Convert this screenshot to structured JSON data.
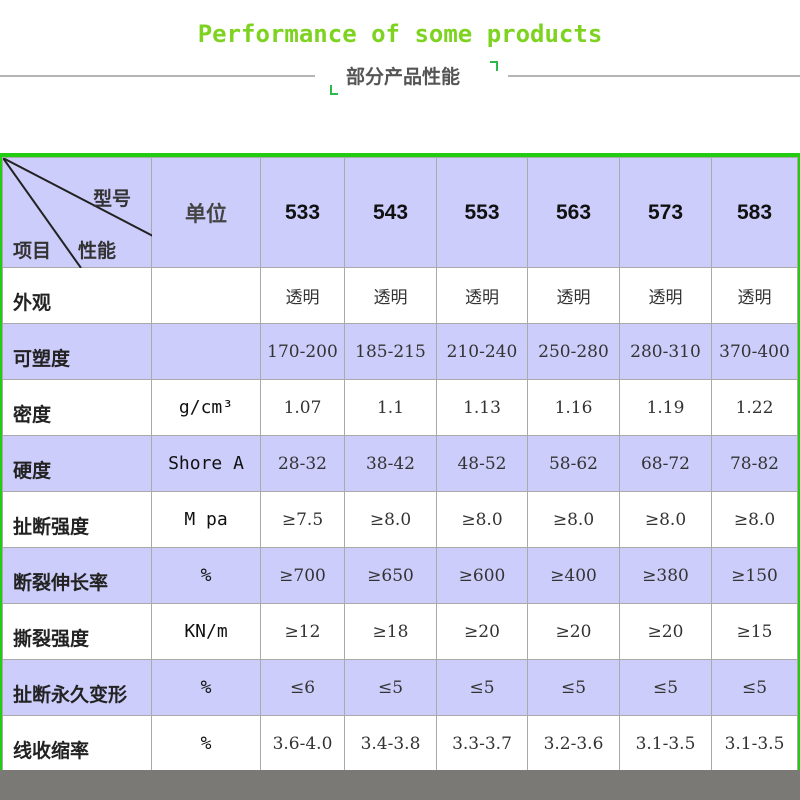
{
  "header": {
    "title": "Performance of some products",
    "subtitle": "部分产品性能"
  },
  "table": {
    "corner": {
      "model": "型号",
      "item": "项目",
      "property": "性能"
    },
    "unit_header": "单位",
    "models": [
      "533",
      "543",
      "553",
      "563",
      "573",
      "583"
    ],
    "rows": [
      {
        "name": "外观",
        "unit": "",
        "values": [
          "透明",
          "透明",
          "透明",
          "透明",
          "透明",
          "透明"
        ]
      },
      {
        "name": "可塑度",
        "unit": "",
        "values": [
          "170-200",
          "185-215",
          "210-240",
          "250-280",
          "280-310",
          "370-400"
        ]
      },
      {
        "name": "密度",
        "unit": "g/cm³",
        "values": [
          "1.07",
          "1.1",
          "1.13",
          "1.16",
          "1.19",
          "1.22"
        ]
      },
      {
        "name": "硬度",
        "unit": "Shore A",
        "values": [
          "28-32",
          "38-42",
          "48-52",
          "58-62",
          "68-72",
          "78-82"
        ]
      },
      {
        "name": "扯断强度",
        "unit": "M pa",
        "values": [
          "≥7.5",
          "≥8.0",
          "≥8.0",
          "≥8.0",
          "≥8.0",
          "≥8.0"
        ]
      },
      {
        "name": "断裂伸长率",
        "unit": "%",
        "values": [
          "≥700",
          "≥650",
          "≥600",
          "≥400",
          "≥380",
          "≥150"
        ]
      },
      {
        "name": "撕裂强度",
        "unit": "KN/m",
        "values": [
          "≥12",
          "≥18",
          "≥20",
          "≥20",
          "≥20",
          "≥15"
        ]
      },
      {
        "name": "扯断永久变形",
        "unit": "%",
        "values": [
          "≤6",
          "≤5",
          "≤5",
          "≤5",
          "≤5",
          "≤5"
        ]
      },
      {
        "name": "线收缩率",
        "unit": "%",
        "values": [
          "3.6-4.0",
          "3.4-3.8",
          "3.3-3.7",
          "3.2-3.6",
          "3.1-3.5",
          "3.1-3.5"
        ]
      }
    ]
  },
  "colors": {
    "title": "#7ed321",
    "border": "#22cc11",
    "row_highlight": "#cccdfa"
  }
}
